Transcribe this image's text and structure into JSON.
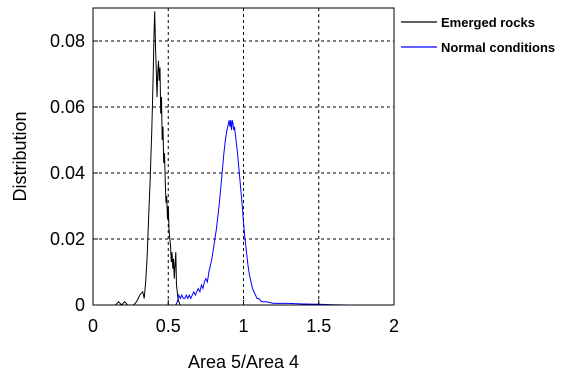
{
  "chart_data": {
    "type": "line",
    "xlabel": "Area 5/Area 4",
    "ylabel": "Distribution",
    "xlim": [
      0,
      2
    ],
    "ylim": [
      0,
      0.09
    ],
    "x_ticks": [
      0,
      0.5,
      1,
      1.5,
      2
    ],
    "x_tick_labels": [
      "0",
      "0.5",
      "1",
      "1.5",
      "2"
    ],
    "y_ticks": [
      0,
      0.02,
      0.04,
      0.06,
      0.08
    ],
    "y_tick_labels": [
      "0",
      "0.02",
      "0.04",
      "0.06",
      "0.08"
    ],
    "grid": "dashed, at ticks",
    "legend_position": "outside-top-right",
    "series": [
      {
        "name": "Emerged rocks",
        "color": "#000000",
        "points": [
          [
            0.15,
            0.0
          ],
          [
            0.17,
            0.001
          ],
          [
            0.19,
            0.0
          ],
          [
            0.21,
            0.001
          ],
          [
            0.23,
            0.0
          ],
          [
            0.25,
            0.0
          ],
          [
            0.27,
            0.0
          ],
          [
            0.29,
            0.001
          ],
          [
            0.31,
            0.003
          ],
          [
            0.33,
            0.004
          ],
          [
            0.34,
            0.002
          ],
          [
            0.35,
            0.007
          ],
          [
            0.36,
            0.015
          ],
          [
            0.37,
            0.027
          ],
          [
            0.38,
            0.038
          ],
          [
            0.385,
            0.045
          ],
          [
            0.39,
            0.052
          ],
          [
            0.395,
            0.06
          ],
          [
            0.4,
            0.07
          ],
          [
            0.405,
            0.082
          ],
          [
            0.41,
            0.089
          ],
          [
            0.415,
            0.078
          ],
          [
            0.42,
            0.072
          ],
          [
            0.425,
            0.063
          ],
          [
            0.43,
            0.07
          ],
          [
            0.435,
            0.074
          ],
          [
            0.44,
            0.068
          ],
          [
            0.445,
            0.072
          ],
          [
            0.45,
            0.058
          ],
          [
            0.455,
            0.063
          ],
          [
            0.46,
            0.05
          ],
          [
            0.465,
            0.054
          ],
          [
            0.47,
            0.043
          ],
          [
            0.475,
            0.046
          ],
          [
            0.48,
            0.038
          ],
          [
            0.485,
            0.031
          ],
          [
            0.49,
            0.033
          ],
          [
            0.495,
            0.026
          ],
          [
            0.5,
            0.03
          ],
          [
            0.505,
            0.023
          ],
          [
            0.51,
            0.02
          ],
          [
            0.515,
            0.018
          ],
          [
            0.52,
            0.013
          ],
          [
            0.525,
            0.016
          ],
          [
            0.53,
            0.011
          ],
          [
            0.535,
            0.014
          ],
          [
            0.54,
            0.008
          ],
          [
            0.545,
            0.012
          ],
          [
            0.55,
            0.016
          ],
          [
            0.555,
            0.006
          ],
          [
            0.56,
            0.004
          ],
          [
            0.565,
            0.002
          ],
          [
            0.57,
            0.001
          ],
          [
            0.58,
            0.0
          ]
        ]
      },
      {
        "name": "Normal conditions",
        "color": "#0000ff",
        "points": [
          [
            0.55,
            0.0
          ],
          [
            0.56,
            0.001
          ],
          [
            0.57,
            0.003
          ],
          [
            0.58,
            0.002
          ],
          [
            0.59,
            0.003
          ],
          [
            0.6,
            0.002
          ],
          [
            0.61,
            0.002
          ],
          [
            0.62,
            0.003
          ],
          [
            0.63,
            0.002
          ],
          [
            0.64,
            0.003
          ],
          [
            0.65,
            0.002
          ],
          [
            0.66,
            0.003
          ],
          [
            0.67,
            0.004
          ],
          [
            0.68,
            0.003
          ],
          [
            0.69,
            0.004
          ],
          [
            0.7,
            0.005
          ],
          [
            0.71,
            0.004
          ],
          [
            0.72,
            0.006
          ],
          [
            0.73,
            0.005
          ],
          [
            0.74,
            0.007
          ],
          [
            0.75,
            0.008
          ],
          [
            0.76,
            0.007
          ],
          [
            0.77,
            0.01
          ],
          [
            0.78,
            0.012
          ],
          [
            0.79,
            0.014
          ],
          [
            0.8,
            0.017
          ],
          [
            0.81,
            0.02
          ],
          [
            0.82,
            0.023
          ],
          [
            0.83,
            0.027
          ],
          [
            0.84,
            0.031
          ],
          [
            0.85,
            0.036
          ],
          [
            0.86,
            0.041
          ],
          [
            0.87,
            0.046
          ],
          [
            0.88,
            0.05
          ],
          [
            0.89,
            0.053
          ],
          [
            0.9,
            0.055
          ],
          [
            0.905,
            0.056
          ],
          [
            0.91,
            0.054
          ],
          [
            0.915,
            0.056
          ],
          [
            0.92,
            0.053
          ],
          [
            0.925,
            0.056
          ],
          [
            0.93,
            0.055
          ],
          [
            0.935,
            0.053
          ],
          [
            0.94,
            0.054
          ],
          [
            0.95,
            0.05
          ],
          [
            0.96,
            0.046
          ],
          [
            0.97,
            0.041
          ],
          [
            0.98,
            0.036
          ],
          [
            0.99,
            0.031
          ],
          [
            1.0,
            0.025
          ],
          [
            1.01,
            0.02
          ],
          [
            1.02,
            0.016
          ],
          [
            1.03,
            0.012
          ],
          [
            1.04,
            0.009
          ],
          [
            1.05,
            0.007
          ],
          [
            1.06,
            0.005
          ],
          [
            1.07,
            0.004
          ],
          [
            1.08,
            0.003
          ],
          [
            1.09,
            0.002
          ],
          [
            1.1,
            0.002
          ],
          [
            1.12,
            0.001
          ],
          [
            1.15,
            0.001
          ],
          [
            1.2,
            0.0005
          ],
          [
            1.3,
            0.0005
          ],
          [
            1.4,
            0.0003
          ],
          [
            1.5,
            0.0002
          ],
          [
            1.6,
            0.0001
          ],
          [
            1.7,
            0.0
          ]
        ]
      }
    ]
  }
}
